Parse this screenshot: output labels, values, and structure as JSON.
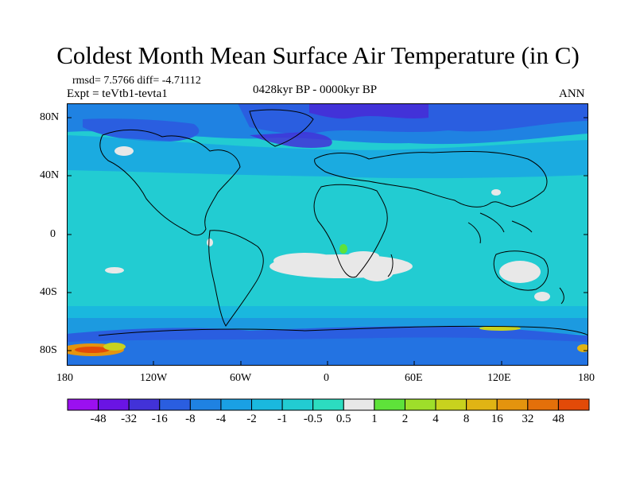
{
  "title": "Coldest Month Mean Surface Air Temperature (in C)",
  "stats": {
    "rmsd_diff": "rmsd= 7.5766 diff= -4.71112",
    "experiment": "Expt = teVtb1-tevta1"
  },
  "period": "0428kyr BP - 0000kyr BP",
  "season": "ANN",
  "axes": {
    "y_ticks": [
      "80N",
      "40N",
      "0",
      "40S",
      "80S"
    ],
    "x_ticks": [
      "180",
      "120W",
      "60W",
      "0",
      "60E",
      "120E",
      "180"
    ]
  },
  "colorbar": {
    "labels": [
      "-48",
      "-32",
      "-16",
      "-8",
      "-4",
      "-2",
      "-1",
      "-0.5",
      "0.5",
      "1",
      "2",
      "4",
      "8",
      "16",
      "32",
      "48"
    ],
    "colors": [
      "#9b10f0",
      "#6a14e4",
      "#4232d8",
      "#2a5ee0",
      "#1f82e2",
      "#1aa0e4",
      "#1ab8de",
      "#22ccd2",
      "#2cdcc0",
      "#e8e8e8",
      "#5ee23a",
      "#9ede2a",
      "#c8d21e",
      "#e0b414",
      "#e4940e",
      "#e4700a",
      "#e24a08"
    ]
  },
  "chart_data": {
    "type": "heatmap",
    "title": "Coldest Month Mean Surface Air Temperature (in C)",
    "subtitle": "0428kyr BP - 0000kyr BP",
    "season": "ANN",
    "units": "C",
    "x_range": [
      -180,
      180
    ],
    "y_range": [
      -90,
      90
    ],
    "x_ticks": [
      "180",
      "120W",
      "60W",
      "0",
      "60E",
      "120E",
      "180"
    ],
    "y_ticks": [
      "80N",
      "40N",
      "0",
      "40S",
      "80S"
    ],
    "levels": [
      "-48",
      "-32",
      "-16",
      "-8",
      "-4",
      "-2",
      "-1",
      "-0.5",
      "0.5",
      "1",
      "2",
      "4",
      "8",
      "16",
      "32",
      "48"
    ],
    "rmsd": 7.5766,
    "diff": -4.71112
  }
}
